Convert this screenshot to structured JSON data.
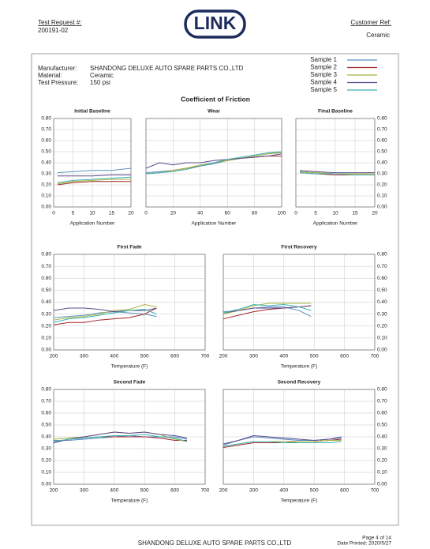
{
  "header": {
    "request_label": "Test Request #:",
    "request_no": "200191-02",
    "logo": "LINK",
    "customer_label": "Customer Ref:",
    "customer_value": "Ceramic"
  },
  "info": [
    {
      "label": "Manufacturer:",
      "value": "SHANDONG DELUXE AUTO SPARE PARTS CO.,LTD"
    },
    {
      "label": "Material:",
      "value": "Ceramic"
    },
    {
      "label": "Test Pressure:",
      "value": "150 psi"
    }
  ],
  "legend": [
    {
      "name": "Sample 1",
      "color": "#5b8fc0"
    },
    {
      "name": "Sample 2",
      "color": "#a3262a"
    },
    {
      "name": "Sample 3",
      "color": "#a9b23c"
    },
    {
      "name": "Sample 4",
      "color": "#5b4a8c"
    },
    {
      "name": "Sample 5",
      "color": "#3cb4b4"
    }
  ],
  "figure_title": "Coefficient of Friction",
  "chart_data": [
    {
      "type": "line",
      "title": "Initial Baseline",
      "x_label": "Application Number",
      "x": [
        1,
        5,
        10,
        15,
        20
      ],
      "xlim": [
        0,
        20
      ],
      "xticks": [
        0,
        5,
        10,
        15,
        20
      ],
      "ylim": [
        0,
        0.8
      ],
      "yticks": [
        {
          "value": 0,
          "label": "0.00"
        },
        {
          "value": 0.1,
          "label": "0.10"
        },
        {
          "value": 0.2,
          "label": "0.20"
        },
        {
          "value": 0.3,
          "label": "0.30"
        },
        {
          "value": 0.4,
          "label": "0.40"
        },
        {
          "value": 0.5,
          "label": "0.50"
        },
        {
          "value": 0.6,
          "label": "0.60"
        },
        {
          "value": 0.7,
          "label": "0.70"
        },
        {
          "value": 0.8,
          "label": "0.80"
        }
      ],
      "grid": true,
      "series": [
        {
          "values": [
            0.31,
            0.32,
            0.33,
            0.33,
            0.35
          ]
        },
        {
          "values": [
            0.2,
            0.22,
            0.23,
            0.23,
            0.23
          ]
        },
        {
          "values": [
            0.21,
            0.23,
            0.24,
            0.25,
            0.25
          ]
        },
        {
          "values": [
            0.28,
            0.28,
            0.28,
            0.29,
            0.29
          ]
        },
        {
          "values": [
            0.22,
            0.24,
            0.25,
            0.26,
            0.27
          ]
        }
      ]
    },
    {
      "type": "line",
      "title": "Wear",
      "x_label": "Application Number",
      "x": [
        0,
        10,
        20,
        30,
        40,
        50,
        60,
        70,
        80,
        90,
        100
      ],
      "xlim": [
        0,
        100
      ],
      "xticks": [
        0,
        20,
        40,
        60,
        80,
        100
      ],
      "ylim": [
        0,
        0.8
      ],
      "yticks": [
        0,
        0.1,
        0.2,
        0.3,
        0.4,
        0.5,
        0.6,
        0.7,
        0.8
      ],
      "grid": true,
      "series": [
        {
          "values": [
            0.31,
            0.32,
            0.33,
            0.35,
            0.37,
            0.39,
            0.42,
            0.44,
            0.46,
            0.48,
            0.5
          ]
        },
        {
          "values": [
            0.3,
            0.31,
            0.33,
            0.35,
            0.37,
            0.4,
            0.42,
            0.44,
            0.45,
            0.46,
            0.46
          ]
        },
        {
          "values": [
            0.3,
            0.31,
            0.33,
            0.35,
            0.38,
            0.4,
            0.42,
            0.44,
            0.46,
            0.48,
            0.49
          ]
        },
        {
          "values": [
            0.35,
            0.4,
            0.38,
            0.4,
            0.4,
            0.42,
            0.43,
            0.44,
            0.45,
            0.46,
            0.48
          ]
        },
        {
          "values": [
            0.3,
            0.31,
            0.32,
            0.34,
            0.37,
            0.4,
            0.43,
            0.45,
            0.47,
            0.49,
            0.5
          ]
        }
      ]
    },
    {
      "type": "line",
      "title": "Final Baseline",
      "x_label": "Application Number",
      "x": [
        1,
        5,
        10,
        15,
        20
      ],
      "xlim": [
        0,
        20
      ],
      "xticks": [
        0,
        5,
        10,
        15,
        20
      ],
      "ylim": [
        0,
        0.8
      ],
      "yticks": [
        {
          "value": 0,
          "label": "0.00"
        },
        {
          "value": 0.1,
          "label": "0.10"
        },
        {
          "value": 0.2,
          "label": "0.20"
        },
        {
          "value": 0.3,
          "label": "0.30"
        },
        {
          "value": 0.4,
          "label": "0.40"
        },
        {
          "value": 0.5,
          "label": "0.50"
        },
        {
          "value": 0.6,
          "label": "0.60"
        },
        {
          "value": 0.7,
          "label": "0.70"
        },
        {
          "value": 0.8,
          "label": "0.80"
        }
      ],
      "grid": true,
      "series": [
        {
          "values": [
            0.32,
            0.31,
            0.3,
            0.3,
            0.3
          ]
        },
        {
          "values": [
            0.31,
            0.3,
            0.29,
            0.29,
            0.29
          ]
        },
        {
          "values": [
            0.32,
            0.31,
            0.3,
            0.3,
            0.3
          ]
        },
        {
          "values": [
            0.33,
            0.32,
            0.31,
            0.31,
            0.31
          ]
        },
        {
          "values": [
            0.31,
            0.3,
            0.3,
            0.29,
            0.29
          ]
        }
      ]
    },
    {
      "type": "line",
      "title": "First Fade",
      "x_label": "Temperature (F)",
      "x": [
        200,
        250,
        300,
        350,
        400,
        450,
        500,
        540
      ],
      "xlim": [
        200,
        700
      ],
      "xticks": [
        200,
        300,
        400,
        500,
        600,
        700
      ],
      "ylim": [
        0,
        0.8
      ],
      "yticks": [
        {
          "value": 0,
          "label": "0.00"
        },
        {
          "value": 0.1,
          "label": "0.10"
        },
        {
          "value": 0.2,
          "label": "0.20"
        },
        {
          "value": 0.3,
          "label": "0.30"
        },
        {
          "value": 0.4,
          "label": "0.40"
        },
        {
          "value": 0.5,
          "label": "0.50"
        },
        {
          "value": 0.6,
          "label": "0.60"
        },
        {
          "value": 0.7,
          "label": "0.70"
        },
        {
          "value": 0.8,
          "label": "0.80"
        }
      ],
      "grid": true,
      "series": [
        {
          "values": [
            0.27,
            0.28,
            0.29,
            0.31,
            0.32,
            0.31,
            0.3,
            0.28
          ]
        },
        {
          "values": [
            0.21,
            0.23,
            0.23,
            0.25,
            0.26,
            0.27,
            0.3,
            0.35
          ]
        },
        {
          "values": [
            0.25,
            0.27,
            0.28,
            0.3,
            0.33,
            0.34,
            0.38,
            0.36
          ]
        },
        {
          "values": [
            0.33,
            0.35,
            0.35,
            0.34,
            0.32,
            0.33,
            0.33,
            0.35
          ]
        },
        {
          "values": [
            0.23,
            0.26,
            0.27,
            0.29,
            0.31,
            0.33,
            0.34,
            0.3
          ]
        }
      ]
    },
    {
      "type": "line",
      "title": "First Recovery",
      "x_label": "Temperature (F)",
      "x": [
        200,
        250,
        300,
        350,
        400,
        450,
        490
      ],
      "xlim": [
        200,
        700
      ],
      "xticks": [
        200,
        300,
        400,
        500,
        600,
        700
      ],
      "ylim": [
        0,
        0.8
      ],
      "yticks": [
        {
          "value": 0,
          "label": "0.00"
        },
        {
          "value": 0.1,
          "label": "0.10"
        },
        {
          "value": 0.2,
          "label": "0.20"
        },
        {
          "value": 0.3,
          "label": "0.30"
        },
        {
          "value": 0.4,
          "label": "0.40"
        },
        {
          "value": 0.5,
          "label": "0.50"
        },
        {
          "value": 0.6,
          "label": "0.60"
        },
        {
          "value": 0.7,
          "label": "0.70"
        },
        {
          "value": 0.8,
          "label": "0.80"
        }
      ],
      "grid": true,
      "series": [
        {
          "values": [
            0.32,
            0.33,
            0.35,
            0.36,
            0.36,
            0.33,
            0.28
          ]
        },
        {
          "values": [
            0.26,
            0.29,
            0.32,
            0.34,
            0.35,
            0.36,
            0.37
          ]
        },
        {
          "values": [
            0.3,
            0.33,
            0.37,
            0.39,
            0.39,
            0.39,
            0.39
          ]
        },
        {
          "values": [
            0.31,
            0.33,
            0.35,
            0.35,
            0.35,
            0.36,
            0.37
          ]
        },
        {
          "values": [
            0.31,
            0.34,
            0.38,
            0.37,
            0.38,
            0.36,
            0.33
          ]
        }
      ]
    },
    {
      "type": "line",
      "title": "Second Fade",
      "x_label": "Temperature (F)",
      "x": [
        200,
        250,
        300,
        350,
        400,
        450,
        500,
        550,
        600,
        640
      ],
      "xlim": [
        200,
        700
      ],
      "xticks": [
        200,
        300,
        400,
        500,
        600,
        700
      ],
      "ylim": [
        0,
        0.8
      ],
      "yticks": [
        {
          "value": 0,
          "label": "0.00"
        },
        {
          "value": 0.1,
          "label": "0.10"
        },
        {
          "value": 0.2,
          "label": "0.20"
        },
        {
          "value": 0.3,
          "label": "0.30"
        },
        {
          "value": 0.4,
          "label": "0.40"
        },
        {
          "value": 0.5,
          "label": "0.50"
        },
        {
          "value": 0.6,
          "label": "0.60"
        },
        {
          "value": 0.7,
          "label": "0.70"
        },
        {
          "value": 0.8,
          "label": "0.80"
        }
      ],
      "grid": true,
      "series": [
        {
          "values": [
            0.37,
            0.37,
            0.38,
            0.39,
            0.4,
            0.41,
            0.4,
            0.4,
            0.4,
            0.38
          ]
        },
        {
          "values": [
            0.35,
            0.38,
            0.39,
            0.4,
            0.4,
            0.4,
            0.4,
            0.39,
            0.37,
            0.37
          ]
        },
        {
          "values": [
            0.38,
            0.39,
            0.4,
            0.42,
            0.44,
            0.43,
            0.44,
            0.42,
            0.38,
            0.36
          ]
        },
        {
          "values": [
            0.35,
            0.38,
            0.4,
            0.42,
            0.44,
            0.43,
            0.44,
            0.42,
            0.41,
            0.39
          ]
        },
        {
          "values": [
            0.36,
            0.38,
            0.39,
            0.4,
            0.41,
            0.41,
            0.42,
            0.4,
            0.39,
            0.36
          ]
        }
      ]
    },
    {
      "type": "line",
      "title": "Second Recovery",
      "x_label": "Temperature (F)",
      "x": [
        200,
        250,
        300,
        350,
        400,
        450,
        500,
        550,
        590
      ],
      "xlim": [
        200,
        700
      ],
      "xticks": [
        200,
        300,
        400,
        500,
        600,
        700
      ],
      "ylim": [
        0,
        0.8
      ],
      "yticks": [
        {
          "value": 0,
          "label": "0.00"
        },
        {
          "value": 0.1,
          "label": "0.10"
        },
        {
          "value": 0.2,
          "label": "0.20"
        },
        {
          "value": 0.3,
          "label": "0.30"
        },
        {
          "value": 0.4,
          "label": "0.40"
        },
        {
          "value": 0.5,
          "label": "0.50"
        },
        {
          "value": 0.6,
          "label": "0.60"
        },
        {
          "value": 0.7,
          "label": "0.70"
        },
        {
          "value": 0.8,
          "label": "0.80"
        }
      ],
      "grid": true,
      "series": [
        {
          "values": [
            0.33,
            0.37,
            0.4,
            0.39,
            0.38,
            0.37,
            0.37,
            0.38,
            0.39
          ]
        },
        {
          "values": [
            0.31,
            0.33,
            0.35,
            0.35,
            0.35,
            0.36,
            0.36,
            0.37,
            0.38
          ]
        },
        {
          "values": [
            0.32,
            0.34,
            0.36,
            0.36,
            0.36,
            0.36,
            0.36,
            0.37,
            0.37
          ]
        },
        {
          "values": [
            0.34,
            0.37,
            0.41,
            0.4,
            0.39,
            0.38,
            0.37,
            0.38,
            0.4
          ]
        },
        {
          "values": [
            0.32,
            0.34,
            0.36,
            0.36,
            0.35,
            0.35,
            0.35,
            0.35,
            0.36
          ]
        }
      ]
    }
  ],
  "footer": {
    "company": "SHANDONG DELUXE AUTO SPARE PARTS CO.,LTD",
    "page": "Page 4 of 14",
    "date": "Date Printed: 2020/5/27"
  }
}
